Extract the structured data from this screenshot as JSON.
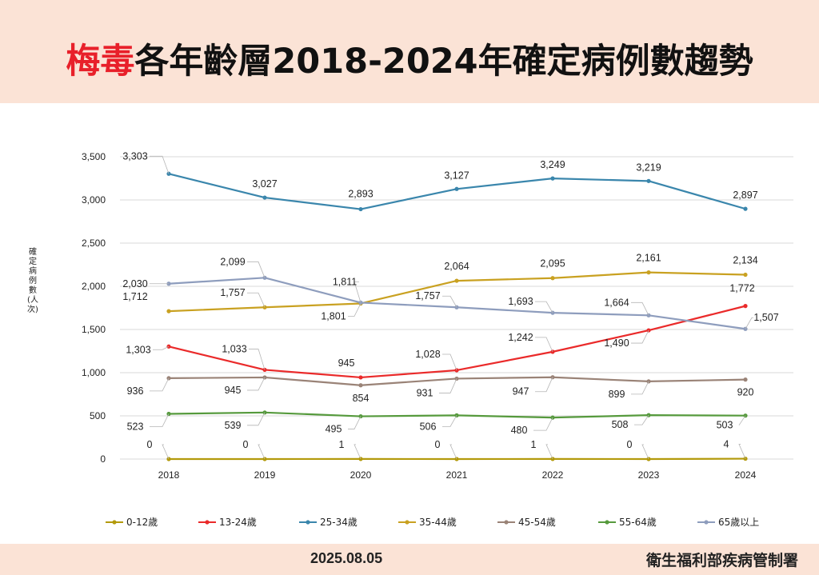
{
  "header": {
    "title_highlight": "梅毒",
    "title_rest": "各年齡層2018-2024年確定病例數趨勢"
  },
  "footer": {
    "date": "2025.08.05",
    "org": "衛生福利部疾病管制署"
  },
  "chart_data": {
    "type": "line",
    "title": "梅毒各年齡層2018-2024年確定病例數趨勢",
    "ylabel": "確定病例數(人次)",
    "xlabel": "",
    "x": [
      "2018",
      "2019",
      "2020",
      "2021",
      "2022",
      "2023",
      "2024"
    ],
    "ylim": [
      0,
      3500
    ],
    "yticks": [
      "0",
      "500",
      "1,000",
      "1,500",
      "2,000",
      "2,500",
      "3,000",
      "3,500"
    ],
    "ytick_values": [
      0,
      500,
      1000,
      1500,
      2000,
      2500,
      3000,
      3500
    ],
    "grid": true,
    "legend_position": "bottom",
    "series": [
      {
        "name": "0-12歲",
        "color": "#b39a0c",
        "values": [
          0,
          0,
          1,
          0,
          1,
          0,
          4
        ],
        "labels": [
          "0",
          "0",
          "1",
          "0",
          "1",
          "0",
          "4"
        ]
      },
      {
        "name": "13-24歲",
        "color": "#ea2a2a",
        "values": [
          1303,
          1033,
          945,
          1028,
          1242,
          1490,
          1772
        ],
        "labels": [
          "1,303",
          "1,033",
          "945",
          "1,028",
          "1,242",
          "1,490",
          "1,772"
        ]
      },
      {
        "name": "25-34歲",
        "color": "#3a86ac",
        "values": [
          3303,
          3027,
          2893,
          3127,
          3249,
          3219,
          2897
        ],
        "labels": [
          "3,303",
          "3,027",
          "2,893",
          "3,127",
          "3,249",
          "3,219",
          "2,897"
        ]
      },
      {
        "name": "35-44歲",
        "color": "#c9a121",
        "values": [
          1712,
          1757,
          1801,
          2064,
          2095,
          2161,
          2134
        ],
        "labels": [
          "1,712",
          "1,757",
          "1,801",
          "2,064",
          "2,095",
          "2,161",
          "2,134"
        ]
      },
      {
        "name": "45-54歲",
        "color": "#9a8377",
        "values": [
          936,
          945,
          854,
          931,
          947,
          899,
          920
        ],
        "labels": [
          "936",
          "945",
          "854",
          "931",
          "947",
          "899",
          "920"
        ]
      },
      {
        "name": "55-64歲",
        "color": "#569a3d",
        "values": [
          523,
          539,
          495,
          506,
          480,
          508,
          503
        ],
        "labels": [
          "523",
          "539",
          "495",
          "506",
          "480",
          "508",
          "503"
        ]
      },
      {
        "name": "65歲以上",
        "color": "#8e9dbd",
        "values": [
          2030,
          2099,
          1811,
          1757,
          1693,
          1664,
          1507
        ],
        "labels": [
          "2,030",
          "2,099",
          "1,811",
          "1,757",
          "1,693",
          "1,664",
          "1,507"
        ]
      }
    ]
  }
}
